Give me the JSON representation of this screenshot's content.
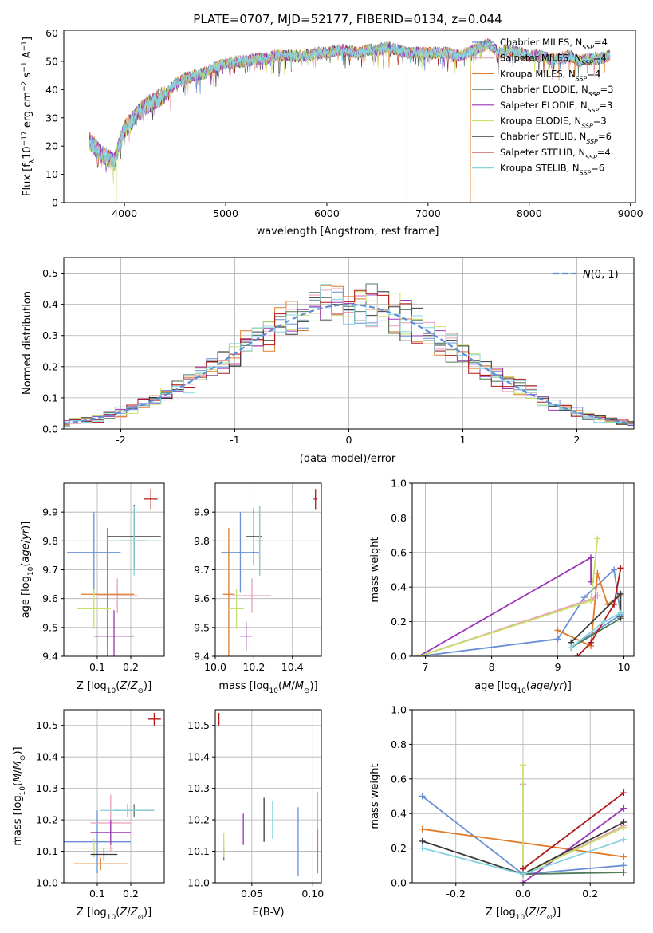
{
  "figure_title": "PLATE=0707, MJD=52177, FIBERID=0134, z=0.044",
  "colors": {
    "Chabrier MILES": "#6a8fd6",
    "Salpeter MILES": "#e9a0b8",
    "Kroupa MILES": "#e07b2a",
    "Chabrier ELODIE": "#4f7a5a",
    "Salpeter ELODIE": "#9a35b5",
    "Kroupa ELODIE": "#c5e36a",
    "Chabrier STELIB": "#3a3a3a",
    "Salpeter STELIB": "#b01818",
    "Kroupa STELIB": "#86d3e0"
  },
  "chart_data": [
    {
      "id": "spectrum",
      "type": "line",
      "title": "PLATE=0707, MJD=52177, FIBERID=0134, z=0.044",
      "xlabel": "wavelength [Angstrom, rest frame]",
      "ylabel": "Flux [f_λ 10^-17 erg cm^-2 s^-1 A^-1]",
      "xlim": [
        3400,
        9050
      ],
      "ylim": [
        0,
        61
      ],
      "xticks": [
        4000,
        5000,
        6000,
        7000,
        8000,
        9000
      ],
      "yticks": [
        0,
        10,
        20,
        30,
        40,
        50,
        60
      ],
      "grid": false,
      "legend": "upper right",
      "legend_entries": [
        {
          "model": "Chabrier MILES",
          "name": "Chabrier MILES, N",
          "sub": "SSP",
          "tail": "=4"
        },
        {
          "model": "Salpeter MILES",
          "name": "Salpeter MILES, N",
          "sub": "SSP",
          "tail": "=4"
        },
        {
          "model": "Kroupa MILES",
          "name": "Kroupa MILES, N",
          "sub": "SSP",
          "tail": "=4"
        },
        {
          "model": "Chabrier ELODIE",
          "name": "Chabrier ELODIE, N",
          "sub": "SSP",
          "tail": "=3"
        },
        {
          "model": "Salpeter ELODIE",
          "name": "Salpeter ELODIE, N",
          "sub": "SSP",
          "tail": "=3"
        },
        {
          "model": "Kroupa ELODIE",
          "name": "Kroupa ELODIE, N",
          "sub": "SSP",
          "tail": "=3"
        },
        {
          "model": "Chabrier STELIB",
          "name": "Chabrier STELIB, N",
          "sub": "SSP",
          "tail": "=6"
        },
        {
          "model": "Salpeter STELIB",
          "name": "Salpeter STELIB, N",
          "sub": "SSP",
          "tail": "=4"
        },
        {
          "model": "Kroupa STELIB",
          "name": "Kroupa STELIB, N",
          "sub": "SSP",
          "tail": "=6"
        }
      ],
      "continuum": [
        [
          3650,
          22
        ],
        [
          3750,
          18
        ],
        [
          3900,
          14
        ],
        [
          3950,
          21
        ],
        [
          4000,
          26
        ],
        [
          4100,
          30
        ],
        [
          4200,
          34
        ],
        [
          4300,
          36
        ],
        [
          4400,
          38
        ],
        [
          4500,
          42
        ],
        [
          4600,
          44
        ],
        [
          4700,
          45
        ],
        [
          4800,
          46
        ],
        [
          4900,
          48
        ],
        [
          5000,
          49
        ],
        [
          5100,
          50
        ],
        [
          5200,
          50
        ],
        [
          5300,
          51
        ],
        [
          5400,
          51
        ],
        [
          5500,
          52
        ],
        [
          5600,
          52
        ],
        [
          5700,
          52
        ],
        [
          5800,
          52
        ],
        [
          5900,
          53
        ],
        [
          6000,
          53
        ],
        [
          6100,
          54
        ],
        [
          6200,
          54
        ],
        [
          6300,
          53
        ],
        [
          6400,
          54
        ],
        [
          6500,
          54
        ],
        [
          6600,
          55
        ],
        [
          6700,
          54
        ],
        [
          6800,
          53
        ],
        [
          6900,
          53
        ],
        [
          7000,
          53
        ],
        [
          7100,
          53
        ],
        [
          7200,
          53
        ],
        [
          7300,
          52
        ],
        [
          7400,
          53
        ],
        [
          7500,
          55
        ],
        [
          7600,
          56
        ],
        [
          7700,
          53
        ],
        [
          7800,
          54
        ],
        [
          7900,
          53
        ],
        [
          8000,
          52
        ],
        [
          8100,
          52
        ],
        [
          8200,
          51
        ],
        [
          8300,
          51
        ],
        [
          8400,
          52
        ],
        [
          8500,
          50
        ],
        [
          8600,
          51
        ],
        [
          8700,
          51
        ],
        [
          8800,
          52
        ]
      ],
      "drops": [
        {
          "model": "Kroupa ELODIE",
          "x": 3920
        },
        {
          "model": "Kroupa ELODIE",
          "x": 6790
        },
        {
          "model": "Kroupa MILES",
          "x": 7420
        }
      ]
    },
    {
      "id": "residuals",
      "type": "histogram",
      "xlabel": "(data-model)/error",
      "ylabel": "Normed distribution",
      "xlim": [
        -2.5,
        2.5
      ],
      "ylim": [
        0,
        0.55
      ],
      "xticks": [
        -2,
        -1,
        0,
        1,
        2
      ],
      "yticks": [
        0.0,
        0.1,
        0.2,
        0.3,
        0.4,
        0.5
      ],
      "bin_width": 0.1,
      "grid": true,
      "legend": "upper right",
      "reference_curve": {
        "name": "N(0,1)",
        "mean": 0,
        "sigma": 1
      }
    },
    {
      "id": "z-age",
      "type": "errorbar",
      "xlabel": "Z [log10(Z/Z⊙)]",
      "ylabel": "age [log10(age/yr)]",
      "xlim": [
        0.0,
        0.3
      ],
      "ylim": [
        9.4,
        10.0
      ],
      "xticks": [
        0.1,
        0.2
      ],
      "yticks": [
        9.4,
        9.5,
        9.6,
        9.7,
        9.8,
        9.9
      ],
      "grid": true,
      "points": [
        {
          "model": "Chabrier MILES",
          "x": 0.09,
          "xerr": 0.08,
          "y": 9.76,
          "yerr": 0.14
        },
        {
          "model": "Salpeter MILES",
          "x": 0.16,
          "xerr": 0.06,
          "y": 9.61,
          "yerr": 0.06
        },
        {
          "model": "Kroupa MILES",
          "x": 0.13,
          "xerr": 0.08,
          "y": 9.615,
          "yerr": 0.23
        },
        {
          "model": "Chabrier ELODIE",
          "x": 0.21,
          "xerr": 0.04,
          "y": 9.8,
          "yerr": 0.1
        },
        {
          "model": "Salpeter ELODIE",
          "x": 0.15,
          "xerr": 0.06,
          "y": 9.47,
          "yerr": 0.09
        },
        {
          "model": "Kroupa ELODIE",
          "x": 0.09,
          "xerr": 0.05,
          "y": 9.565,
          "yerr": 0.07
        },
        {
          "model": "Chabrier STELIB",
          "x": 0.21,
          "xerr": 0.08,
          "y": 9.815,
          "yerr": 0.11
        },
        {
          "model": "Salpeter STELIB",
          "x": 0.26,
          "xerr": 0.02,
          "y": 9.945,
          "yerr": 0.035
        },
        {
          "model": "Kroupa STELIB",
          "x": 0.21,
          "xerr": 0.08,
          "y": 9.8,
          "yerr": 0.12
        }
      ]
    },
    {
      "id": "mass-age",
      "type": "errorbar",
      "xlabel": "mass [log10(M/M⊙)]",
      "ylabel": "",
      "xlim": [
        10.0,
        10.55
      ],
      "ylim": [
        9.4,
        10.0
      ],
      "xticks": [
        10.0,
        10.2,
        10.4
      ],
      "yticks": [
        9.4,
        9.5,
        9.6,
        9.7,
        9.8,
        9.9
      ],
      "grid": true,
      "points": [
        {
          "model": "Chabrier MILES",
          "x": 10.13,
          "xerr": 0.1,
          "y": 9.76,
          "yerr": 0.14
        },
        {
          "model": "Salpeter MILES",
          "x": 10.19,
          "xerr": 0.1,
          "y": 9.61,
          "yerr": 0.06
        },
        {
          "model": "Kroupa MILES",
          "x": 10.07,
          "xerr": 0.03,
          "y": 9.615,
          "yerr": 0.23
        },
        {
          "model": "Chabrier ELODIE",
          "x": 10.23,
          "xerr": 0.02,
          "y": 9.8,
          "yerr": 0.12
        },
        {
          "model": "Salpeter ELODIE",
          "x": 10.16,
          "xerr": 0.03,
          "y": 9.47,
          "yerr": 0.05
        },
        {
          "model": "Kroupa ELODIE",
          "x": 10.11,
          "xerr": 0.04,
          "y": 9.565,
          "yerr": 0.07
        },
        {
          "model": "Chabrier STELIB",
          "x": 10.2,
          "xerr": 0.04,
          "y": 9.815,
          "yerr": 0.1
        },
        {
          "model": "Salpeter STELIB",
          "x": 10.52,
          "xerr": 0.01,
          "y": 9.945,
          "yerr": 0.035
        },
        {
          "model": "Kroupa STELIB",
          "x": 10.23,
          "xerr": 0.02,
          "y": 9.8,
          "yerr": 0.12
        }
      ]
    },
    {
      "id": "age-weight",
      "type": "line",
      "xlabel": "age [log10(age/yr)]",
      "ylabel": "mass weight",
      "xlim": [
        6.8,
        10.15
      ],
      "ylim": [
        0,
        1.0
      ],
      "xticks": [
        7,
        8,
        9,
        10
      ],
      "yticks": [
        0.0,
        0.2,
        0.4,
        0.6,
        0.8,
        1.0
      ],
      "grid": true,
      "series": [
        {
          "model": "Chabrier MILES",
          "points": [
            [
              9.2,
              0.05
            ],
            [
              9.95,
              0.24
            ],
            [
              9.85,
              0.5
            ],
            [
              9.4,
              0.34
            ],
            [
              9.0,
              0.1
            ],
            [
              6.9,
              0.0
            ]
          ]
        },
        {
          "model": "Salpeter MILES",
          "points": [
            [
              6.9,
              0.0
            ],
            [
              9.5,
              0.33
            ],
            [
              9.6,
              0.35
            ]
          ]
        },
        {
          "model": "Kroupa MILES",
          "points": [
            [
              9.0,
              0.15
            ],
            [
              9.5,
              0.06
            ],
            [
              9.6,
              0.48
            ],
            [
              9.75,
              0.3
            ],
            [
              9.95,
              0.35
            ]
          ]
        },
        {
          "model": "Chabrier ELODIE",
          "points": [
            [
              9.2,
              0.05
            ],
            [
              9.95,
              0.22
            ]
          ]
        },
        {
          "model": "Salpeter ELODIE",
          "points": [
            [
              6.9,
              0.0
            ],
            [
              9.5,
              0.57
            ],
            [
              9.5,
              0.43
            ]
          ]
        },
        {
          "model": "Kroupa ELODIE",
          "points": [
            [
              6.9,
              0.0
            ],
            [
              9.5,
              0.32
            ],
            [
              9.6,
              0.68
            ]
          ]
        },
        {
          "model": "Chabrier STELIB",
          "points": [
            [
              9.2,
              0.08
            ],
            [
              9.95,
              0.36
            ],
            [
              9.95,
              0.23
            ]
          ]
        },
        {
          "model": "Salpeter STELIB",
          "points": [
            [
              9.3,
              0.0
            ],
            [
              9.5,
              0.08
            ],
            [
              9.85,
              0.3
            ],
            [
              9.95,
              0.51
            ]
          ]
        },
        {
          "model": "Kroupa STELIB",
          "points": [
            [
              9.2,
              0.05
            ],
            [
              9.7,
              0.2
            ],
            [
              9.95,
              0.25
            ]
          ]
        }
      ]
    },
    {
      "id": "z-mass",
      "type": "errorbar",
      "xlabel": "Z [log10(Z/Z⊙)]",
      "ylabel": "mass [log10(M/M⊙)]",
      "xlim": [
        0.0,
        0.3
      ],
      "ylim": [
        10.0,
        10.55
      ],
      "xticks": [
        0.1,
        0.2
      ],
      "yticks": [
        10.0,
        10.1,
        10.2,
        10.3,
        10.4,
        10.5
      ],
      "grid": true,
      "points": [
        {
          "model": "Chabrier MILES",
          "x": 0.1,
          "xerr": 0.1,
          "y": 10.13,
          "yerr": 0.1
        },
        {
          "model": "Salpeter MILES",
          "x": 0.14,
          "xerr": 0.06,
          "y": 10.19,
          "yerr": 0.09
        },
        {
          "model": "Kroupa MILES",
          "x": 0.11,
          "xerr": 0.08,
          "y": 10.06,
          "yerr": 0.02
        },
        {
          "model": "Chabrier ELODIE",
          "x": 0.21,
          "xerr": 0.06,
          "y": 10.23,
          "yerr": 0.02
        },
        {
          "model": "Salpeter ELODIE",
          "x": 0.14,
          "xerr": 0.06,
          "y": 10.16,
          "yerr": 0.04
        },
        {
          "model": "Kroupa ELODIE",
          "x": 0.09,
          "xerr": 0.06,
          "y": 10.11,
          "yerr": 0.03
        },
        {
          "model": "Chabrier STELIB",
          "x": 0.12,
          "xerr": 0.04,
          "y": 10.09,
          "yerr": 0.02
        },
        {
          "model": "Salpeter STELIB",
          "x": 0.27,
          "xerr": 0.02,
          "y": 10.52,
          "yerr": 0.02
        },
        {
          "model": "Kroupa STELIB",
          "x": 0.19,
          "xerr": 0.08,
          "y": 10.23,
          "yerr": 0.02
        }
      ]
    },
    {
      "id": "ebv-mass",
      "type": "errorbar",
      "xlabel": "E(B-V)",
      "ylabel": "",
      "xlim": [
        0.02,
        0.107
      ],
      "ylim": [
        10.0,
        10.55
      ],
      "xticks": [
        0.05,
        0.1
      ],
      "yticks": [
        10.0,
        10.1,
        10.2,
        10.3,
        10.4,
        10.5
      ],
      "grid": true,
      "points": [
        {
          "model": "Chabrier MILES",
          "x": 0.088,
          "y": 10.13,
          "yerr": 0.11
        },
        {
          "model": "Salpeter MILES",
          "x": 0.104,
          "y": 10.19,
          "yerr": 0.1
        },
        {
          "model": "Kroupa MILES",
          "x": 0.104,
          "y": 10.1,
          "yerr": 0.07
        },
        {
          "model": "Chabrier ELODIE",
          "x": 0.027,
          "y": 10.09,
          "yerr": 0.02
        },
        {
          "model": "Salpeter ELODIE",
          "x": 0.043,
          "y": 10.17,
          "yerr": 0.05
        },
        {
          "model": "Kroupa ELODIE",
          "x": 0.027,
          "y": 10.12,
          "yerr": 0.04
        },
        {
          "model": "Chabrier STELIB",
          "x": 0.06,
          "y": 10.2,
          "yerr": 0.07
        },
        {
          "model": "Salpeter STELIB",
          "x": 0.023,
          "y": 10.52,
          "yerr": 0.02
        },
        {
          "model": "Kroupa STELIB",
          "x": 0.067,
          "y": 10.2,
          "yerr": 0.06
        }
      ]
    },
    {
      "id": "z-weight",
      "type": "line",
      "xlabel": "Z [log10(Z/Z⊙)]",
      "ylabel": "mass weight",
      "xlim": [
        -0.33,
        0.33
      ],
      "ylim": [
        0,
        1.0
      ],
      "xticks": [
        -0.2,
        0.0,
        0.2
      ],
      "yticks": [
        0.0,
        0.2,
        0.4,
        0.6,
        0.8,
        1.0
      ],
      "grid": true,
      "series": [
        {
          "model": "Chabrier MILES",
          "points": [
            [
              -0.3,
              0.5
            ],
            [
              0.0,
              0.05
            ],
            [
              0.3,
              0.1
            ]
          ]
        },
        {
          "model": "Salpeter MILES",
          "points": [
            [
              0.0,
              0.57
            ],
            [
              0.0,
              0.05
            ],
            [
              0.3,
              0.33
            ]
          ]
        },
        {
          "model": "Kroupa MILES",
          "points": [
            [
              -0.3,
              0.31
            ],
            [
              0.3,
              0.15
            ]
          ]
        },
        {
          "model": "Chabrier ELODIE",
          "points": [
            [
              0.0,
              0.05
            ],
            [
              0.3,
              0.06
            ]
          ]
        },
        {
          "model": "Salpeter ELODIE",
          "points": [
            [
              0.0,
              0.0
            ],
            [
              0.3,
              0.43
            ]
          ]
        },
        {
          "model": "Kroupa ELODIE",
          "points": [
            [
              0.0,
              0.68
            ],
            [
              0.0,
              0.05
            ],
            [
              0.3,
              0.32
            ]
          ]
        },
        {
          "model": "Chabrier STELIB",
          "points": [
            [
              -0.3,
              0.24
            ],
            [
              0.0,
              0.05
            ],
            [
              0.3,
              0.35
            ]
          ]
        },
        {
          "model": "Salpeter STELIB",
          "points": [
            [
              0.0,
              0.08
            ],
            [
              0.3,
              0.52
            ]
          ]
        },
        {
          "model": "Kroupa STELIB",
          "points": [
            [
              -0.3,
              0.2
            ],
            [
              0.0,
              0.05
            ],
            [
              0.3,
              0.25
            ]
          ]
        }
      ]
    }
  ]
}
